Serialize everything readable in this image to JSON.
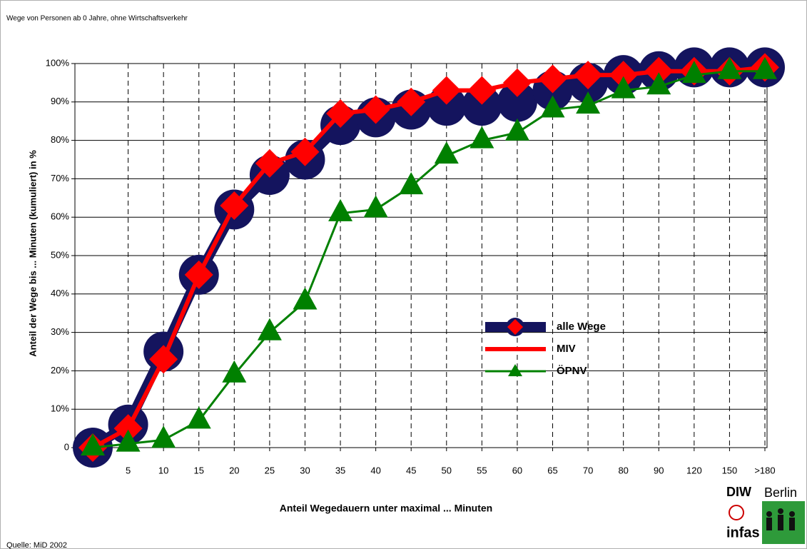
{
  "chart_data": {
    "type": "line",
    "title": "Wege von Personen ab 0 Jahre, ohne Wirtschaftsverkehr",
    "x_label": "Anteil Wegedauern unter maximal ... Minuten",
    "y_label": "Anteil der Wege bis ... Minuten (kumuliert) in %",
    "source": "Quelle: MiD 2002",
    "logo": {
      "diw": "DIW",
      "berlin": "Berlin",
      "infas": "infas"
    },
    "categories": [
      null,
      "5",
      "10",
      "15",
      "20",
      "25",
      "30",
      "35",
      "40",
      "45",
      "50",
      "55",
      "60",
      "65",
      "70",
      "80",
      "90",
      "120",
      "150",
      ">180"
    ],
    "series": [
      {
        "name": "alle Wege",
        "color": "#14145e",
        "marker": "circle",
        "values": [
          0,
          6,
          25,
          45,
          62,
          71,
          75,
          84,
          86,
          88,
          89,
          89,
          90,
          93,
          95,
          97,
          98,
          99,
          99,
          99
        ]
      },
      {
        "name": "MIV",
        "color": "#ff0000",
        "marker": "diamond",
        "values": [
          0,
          5,
          23,
          45,
          63,
          74,
          77,
          87,
          88,
          90,
          93,
          93,
          95,
          96,
          97,
          97,
          98,
          98,
          98,
          99
        ]
      },
      {
        "name": "ÖPNV",
        "color": "#008000",
        "marker": "triangle",
        "values": [
          0,
          1,
          2,
          7,
          19,
          30,
          38,
          61,
          62,
          68,
          76,
          80,
          82,
          88,
          89,
          93,
          94,
          97,
          98,
          98
        ]
      }
    ],
    "ylim": [
      0,
      100
    ],
    "yticks": [
      0,
      {
        "value": 10,
        "label": "10%"
      },
      {
        "value": 20,
        "label": "20%"
      },
      {
        "value": 30,
        "label": "30%"
      },
      {
        "value": 40,
        "label": "40%"
      },
      {
        "value": 50,
        "label": "50%"
      },
      {
        "value": 60,
        "label": "60%"
      },
      {
        "value": 70,
        "label": "70%"
      },
      {
        "value": 80,
        "label": "80%"
      },
      {
        "value": 90,
        "label": "90%"
      },
      {
        "value": 100,
        "label": "100%"
      }
    ],
    "grid": true
  }
}
